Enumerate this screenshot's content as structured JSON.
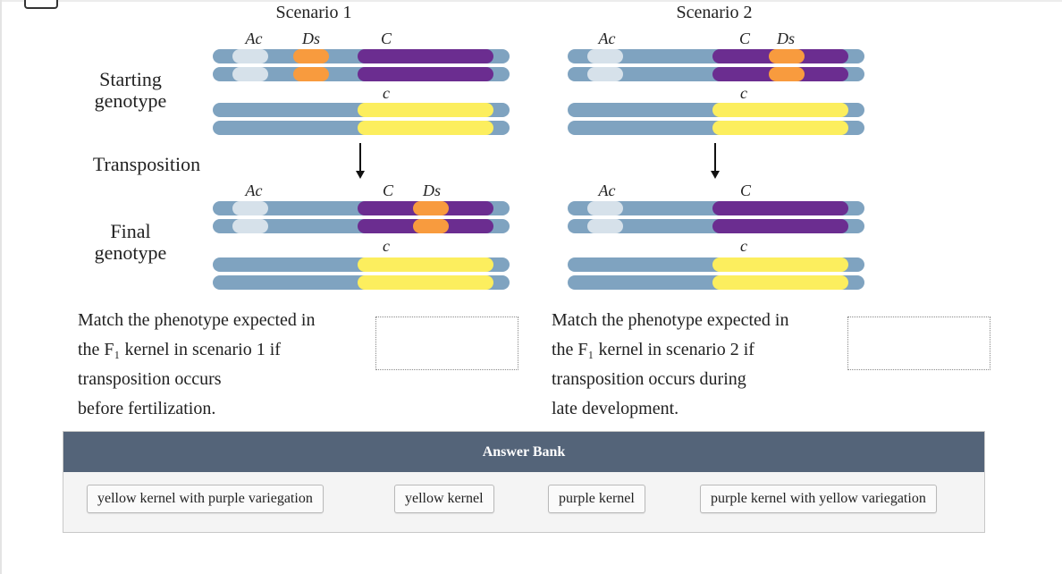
{
  "diagram": {
    "row_labels": {
      "starting": "Starting\ngenotype",
      "transposition": "Transposition",
      "final": "Final\ngenotype"
    },
    "scenarios": [
      {
        "title": "Scenario 1",
        "start_top_labels": [
          "Ac",
          "Ds",
          "C"
        ],
        "start_bottom_label": "c",
        "final_top_labels": [
          "Ac",
          "C",
          "Ds"
        ],
        "final_bottom_label": "c"
      },
      {
        "title": "Scenario 2",
        "start_top_labels": [
          "Ac",
          "C",
          "Ds"
        ],
        "start_bottom_label": "c",
        "final_top_labels": [
          "Ac",
          "C"
        ],
        "final_bottom_label": "c"
      }
    ],
    "colors": {
      "chromosome": "#7fa3c0",
      "ac_band": "#d6e1ea",
      "ds_band": "#f89b3e",
      "c_dominant": "#6b2d90",
      "c_recessive": "#fcee5e"
    }
  },
  "questions": [
    {
      "text": "Match the phenotype expected in\nthe F₁ kernel in scenario 1 if\ntransposition occurs\nbefore fertilization."
    },
    {
      "text": "Match the phenotype expected in\nthe F₁ kernel in scenario 2 if\ntransposition occurs during\nlate development."
    }
  ],
  "answer_bank": {
    "title": "Answer Bank",
    "options": [
      "yellow kernel with purple variegation",
      "yellow kernel",
      "purple kernel",
      "purple kernel with yellow variegation"
    ]
  }
}
